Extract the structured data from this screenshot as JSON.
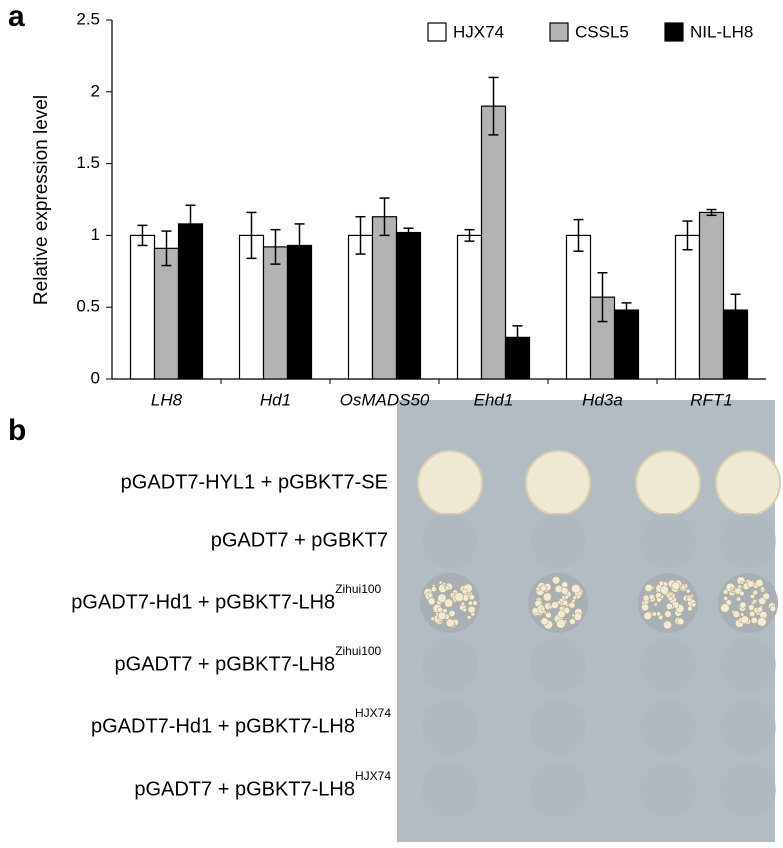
{
  "panel_a": {
    "label": "a",
    "chart_data": {
      "type": "bar",
      "y_label": "Relative expression level",
      "categories": [
        "LH8",
        "Hd1",
        "OsMADS50",
        "Ehd1",
        "Hd3a",
        "RFT1"
      ],
      "series": [
        {
          "name": "HJX74",
          "color": "#ffffff",
          "values": [
            1,
            1,
            1,
            1,
            1,
            1
          ],
          "errors": [
            0.07,
            0.16,
            0.13,
            0.04,
            0.11,
            0.1
          ]
        },
        {
          "name": "CSSL5",
          "color": "#b3b3b3",
          "values": [
            0.91,
            0.92,
            1.13,
            1.9,
            0.57,
            1.16
          ],
          "errors": [
            0.12,
            0.12,
            0.13,
            0.2,
            0.17,
            0.02
          ]
        },
        {
          "name": "NIL-LH8",
          "color": "#000000",
          "values": [
            1.08,
            0.93,
            1.02,
            0.29,
            0.48,
            0.48
          ],
          "errors": [
            0.13,
            0.15,
            0.03,
            0.08,
            0.05,
            0.11
          ]
        }
      ],
      "ylim": [
        0,
        2.5
      ],
      "yticks": [
        0,
        0.5,
        1,
        1.5,
        2,
        2.5
      ],
      "legend": "top-right"
    }
  },
  "panel_b": {
    "label": "b",
    "rows": [
      {
        "text": "pGADT7-HYL1 + pGBKT7-SE"
      },
      {
        "text": "pGADT7 + pGBKT7"
      },
      {
        "text": "pGADT7-Hd1 + pGBKT7-LH8",
        "sup": "Zihui100"
      },
      {
        "text": "pGADT7 + pGBKT7-LH8",
        "sup": "Zihui100"
      },
      {
        "text": "pGADT7-Hd1 + pGBKT7-LH8",
        "sup": "HJX74"
      },
      {
        "text": "pGADT7 + pGBKT7-LH8",
        "sup": "HJX74"
      }
    ]
  }
}
